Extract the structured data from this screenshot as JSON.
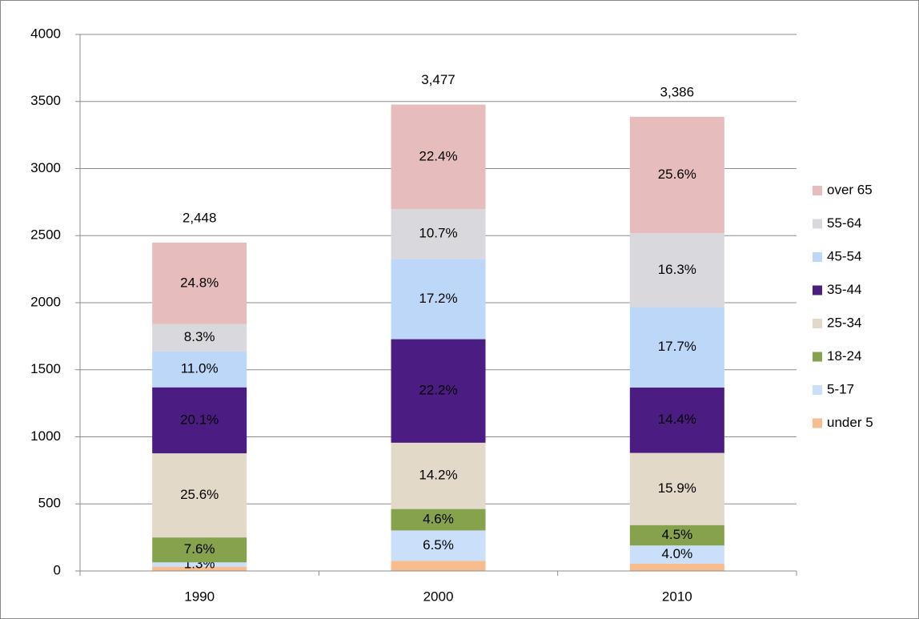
{
  "chart_data": {
    "type": "stacked-bar",
    "categories": [
      "1990",
      "2000",
      "2010"
    ],
    "series": [
      {
        "name": "under 5",
        "color": "#f7bd8e",
        "values": [
          32,
          76,
          55
        ],
        "value_labels": [
          null,
          null,
          null
        ]
      },
      {
        "name": "5-17",
        "color": "#cadff9",
        "values": [
          32,
          226,
          135
        ],
        "value_labels": [
          "1.3%",
          "6.5%",
          "4.0%"
        ]
      },
      {
        "name": "18-24",
        "color": "#87a24c",
        "values": [
          186,
          160,
          152
        ],
        "value_labels": [
          "7.6%",
          "4.6%",
          "4.5%"
        ]
      },
      {
        "name": "25-34",
        "color": "#e2d9c8",
        "values": [
          627,
          494,
          538
        ],
        "value_labels": [
          "25.6%",
          "14.2%",
          "15.9%"
        ]
      },
      {
        "name": "35-44",
        "color": "#4b1c82",
        "values": [
          492,
          772,
          488
        ],
        "value_labels": [
          "20.1%",
          "22.2%",
          "14.4%"
        ]
      },
      {
        "name": "45-54",
        "color": "#bcd7f7",
        "values": [
          269,
          598,
          599
        ],
        "value_labels": [
          "11.0%",
          "17.2%",
          "17.7%"
        ]
      },
      {
        "name": "55-64",
        "color": "#d9d9dd",
        "values": [
          203,
          372,
          552
        ],
        "value_labels": [
          "8.3%",
          "10.7%",
          "16.3%"
        ]
      },
      {
        "name": "over 65",
        "color": "#e7bcbc",
        "values": [
          607,
          779,
          867
        ],
        "value_labels": [
          "24.8%",
          "22.4%",
          "25.6%"
        ]
      }
    ],
    "totals": [
      2448,
      3477,
      3386
    ],
    "total_labels": [
      "2,448",
      "3,477",
      "3,386"
    ],
    "ylim": [
      0,
      4000
    ],
    "yticks": [
      0,
      500,
      1000,
      1500,
      2000,
      2500,
      3000,
      3500,
      4000
    ],
    "grid": true,
    "legend": "right"
  }
}
